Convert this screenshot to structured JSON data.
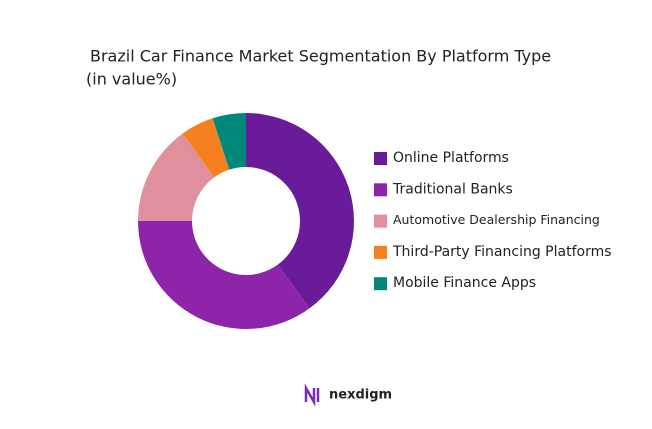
{
  "chart_data": {
    "type": "donut",
    "title": "Brazil Car Finance Market Segmentation By Platform Type",
    "subtitle": "(in value%)",
    "categories": [
      "Online Platforms",
      "Traditional Banks",
      "Automotive Dealership Financing",
      "Third-Party Financing Platforms",
      "Mobile Finance Apps"
    ],
    "values": [
      40,
      35,
      15,
      5,
      5
    ],
    "colors": [
      "#6a1b9a",
      "#8e24aa",
      "#e0909c",
      "#f5801f",
      "#00897b"
    ],
    "legend": "right"
  },
  "brand": "nexdigm"
}
